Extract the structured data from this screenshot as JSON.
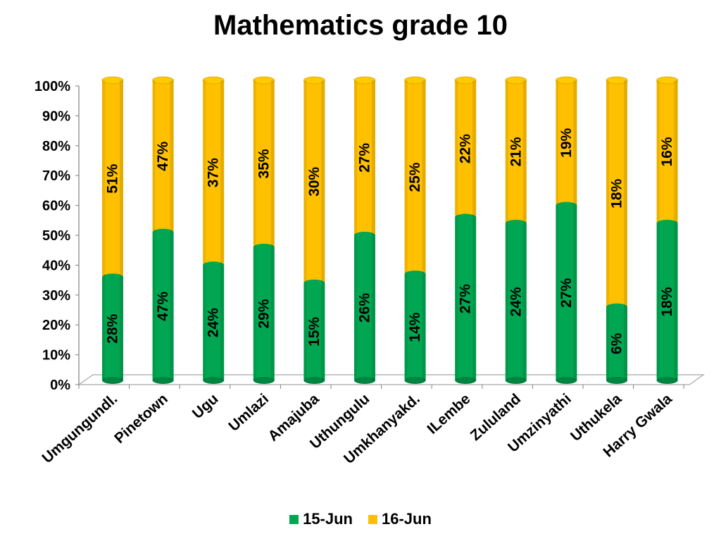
{
  "chart_data": {
    "type": "bar",
    "stacked": true,
    "title": "Mathematics grade 10",
    "xlabel": "",
    "ylabel": "",
    "ylim": [
      0,
      100
    ],
    "yticks": [
      "0%",
      "10%",
      "20%",
      "30%",
      "40%",
      "50%",
      "60%",
      "70%",
      "80%",
      "90%",
      "100%"
    ],
    "categories": [
      "Umgungundl.",
      "Pinetown",
      "Ugu",
      "Umlazi",
      "Amajuba",
      "Uthungulu",
      "Umkhanyakd.",
      "ILembe",
      "Zululand",
      "Umzinyathi",
      "Uthukela",
      "Harry Gwala"
    ],
    "series": [
      {
        "name": "15-Jun",
        "color": "#00A651",
        "share": [
          36,
          51,
          40,
          46,
          34,
          50,
          37,
          56,
          54,
          60,
          26,
          54
        ],
        "labels": [
          "28%",
          "47%",
          "24%",
          "29%",
          "15%",
          "26%",
          "14%",
          "27%",
          "24%",
          "27%",
          "6%",
          "18%"
        ]
      },
      {
        "name": "16-Jun",
        "color": "#FFC000",
        "share": [
          64,
          49,
          60,
          54,
          66,
          50,
          63,
          44,
          46,
          40,
          74,
          46
        ],
        "labels": [
          "51%",
          "47%",
          "37%",
          "35%",
          "30%",
          "27%",
          "25%",
          "22%",
          "21%",
          "19%",
          "18%",
          "16%"
        ]
      }
    ],
    "legend_position": "bottom",
    "grid": false
  }
}
